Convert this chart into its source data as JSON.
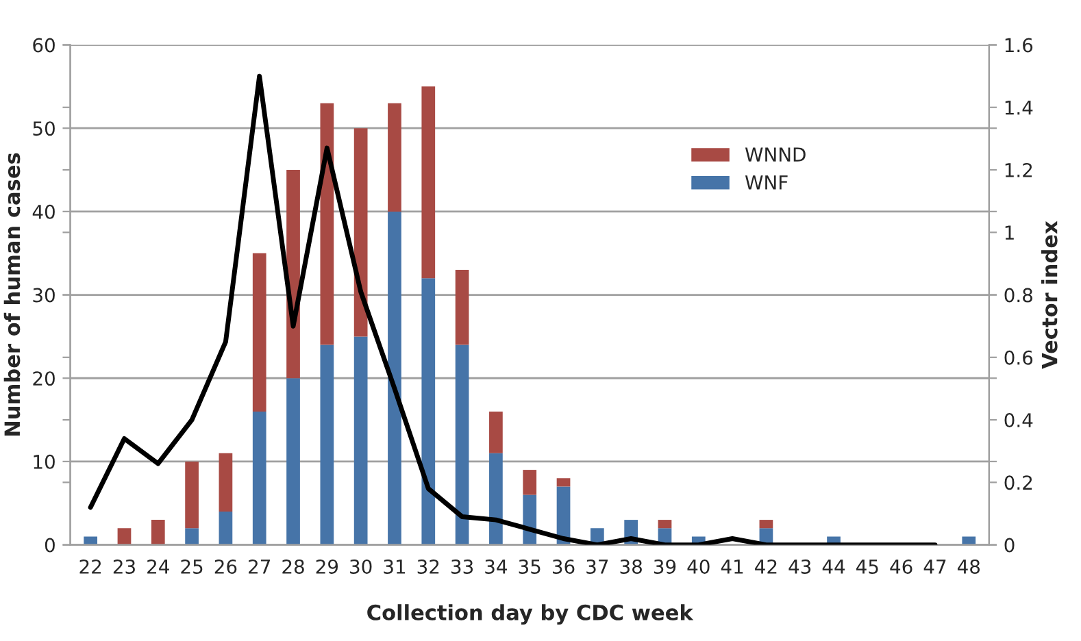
{
  "chart_data": {
    "type": "bar",
    "stacked": true,
    "xlabel": "Collection day by CDC week",
    "ylabel": "Number of human cases",
    "y2label": "Vector index",
    "categories": [
      "22",
      "23",
      "24",
      "25",
      "26",
      "27",
      "28",
      "29",
      "30",
      "31",
      "32",
      "33",
      "34",
      "35",
      "36",
      "37",
      "38",
      "39",
      "40",
      "41",
      "42",
      "43",
      "44",
      "45",
      "46",
      "47",
      "48"
    ],
    "series": [
      {
        "name": "WNF",
        "color": "#4674a8",
        "values": [
          1,
          0,
          0,
          2,
          4,
          16,
          20,
          24,
          25,
          40,
          32,
          24,
          11,
          6,
          7,
          2,
          3,
          2,
          1,
          0,
          2,
          0,
          1,
          0,
          0,
          0,
          1
        ]
      },
      {
        "name": "WNND",
        "color": "#a84a44",
        "values": [
          0,
          2,
          3,
          8,
          7,
          19,
          25,
          29,
          25,
          13,
          23,
          9,
          5,
          3,
          1,
          0,
          0,
          1,
          0,
          0,
          1,
          0,
          0,
          0,
          0,
          0,
          0
        ]
      },
      {
        "type": "line",
        "axis": "y2",
        "color": "#000000",
        "marker": "none",
        "line_style": "solid",
        "values": [
          0.12,
          0.34,
          0.26,
          0.4,
          0.65,
          1.5,
          0.7,
          1.27,
          0.81,
          0.5,
          0.18,
          0.09,
          0.08,
          0.05,
          0.02,
          0,
          0.02,
          0,
          0,
          0.02,
          0,
          0,
          0,
          0,
          0,
          0,
          null
        ]
      }
    ],
    "ylim": [
      0,
      60
    ],
    "yticks": [
      0,
      10,
      20,
      30,
      40,
      50,
      60
    ],
    "y2lim": [
      0,
      1.6
    ],
    "y2ticks": [
      0,
      0.2,
      0.4,
      0.6,
      0.8,
      1,
      1.2,
      1.4,
      1.6
    ],
    "grid": "y",
    "legend": "top right"
  }
}
